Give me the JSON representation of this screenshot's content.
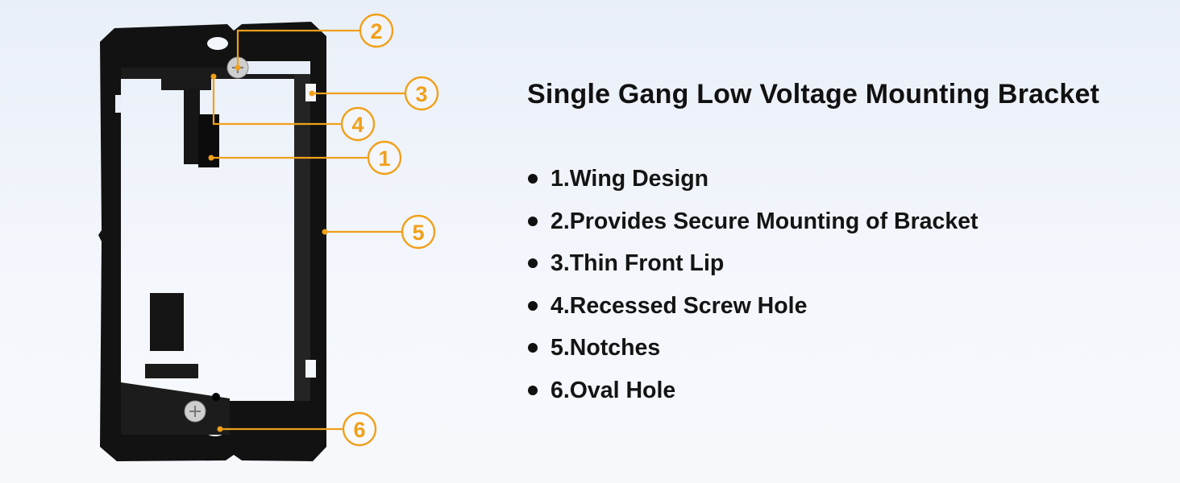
{
  "title": "Single Gang Low Voltage Mounting Bracket",
  "features": [
    "1.Wing Design",
    "2.Provides Secure Mounting of Bracket",
    "3.Thin Front Lip",
    "4.Recessed Screw Hole",
    "5.Notches",
    "6.Oval Hole"
  ],
  "callouts": [
    "1",
    "2",
    "3",
    "4",
    "5",
    "6"
  ],
  "colors": {
    "accent": "#f0a01a",
    "bracket": "#111111",
    "text": "#111111"
  }
}
